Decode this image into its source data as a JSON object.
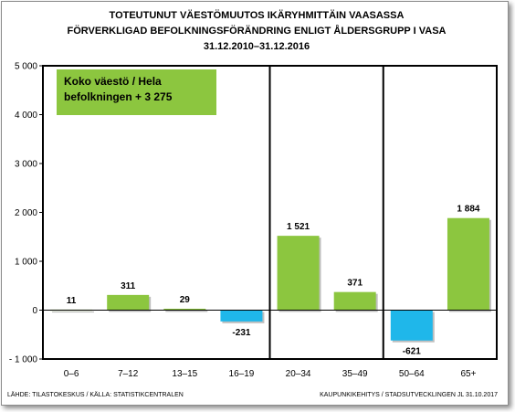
{
  "chart_data": {
    "type": "bar",
    "title_lines": [
      "TOTEUTUNUT VÄESTÖMUUTOS IKÄRYHMITTÄIN VAASASSA",
      "FÖRVERKLIGAD BEFOLKNINGSFÖRÄNDRING ENLIGT ÅLDERSGRUPP I VASA",
      "31.12.2010–31.12.2016"
    ],
    "categories": [
      "0–6",
      "7–12",
      "13–15",
      "16–19",
      "20–34",
      "35–49",
      "50–64",
      "65+"
    ],
    "values": [
      11,
      311,
      29,
      -231,
      1521,
      371,
      -621,
      1884
    ],
    "data_labels": [
      "11",
      "311",
      "29",
      "-231",
      "1 521",
      "371",
      "-621",
      "1 884"
    ],
    "y_ticks": [
      {
        "value": 5000,
        "label": "5 000"
      },
      {
        "value": 4000,
        "label": "4 000"
      },
      {
        "value": 3000,
        "label": "3 000"
      },
      {
        "value": 2000,
        "label": "2 000"
      },
      {
        "value": 1000,
        "label": "1 000"
      },
      {
        "value": 0,
        "label": "0"
      },
      {
        "value": -1000,
        "label": "- 1 000"
      }
    ],
    "ylim": [
      -1000,
      5000
    ],
    "xlabel": "",
    "ylabel": "",
    "grid": false,
    "colors": {
      "positive": "#8cc63f",
      "negative": "#1fb7ea",
      "frame": "#000000"
    },
    "group_separators_after": [
      "16–19",
      "35–49"
    ],
    "summary_annotation": [
      "Koko väestö / Hela",
      "befolkningen + 3 275"
    ],
    "source_left": "LÄHDE: TILASTOKESKUS / KÄLLA: STATISTIKCENTRALEN",
    "source_right": "KAUPUNKIKEHITYS / STADSUTVECKLINGEN JL 31.10.2017"
  }
}
